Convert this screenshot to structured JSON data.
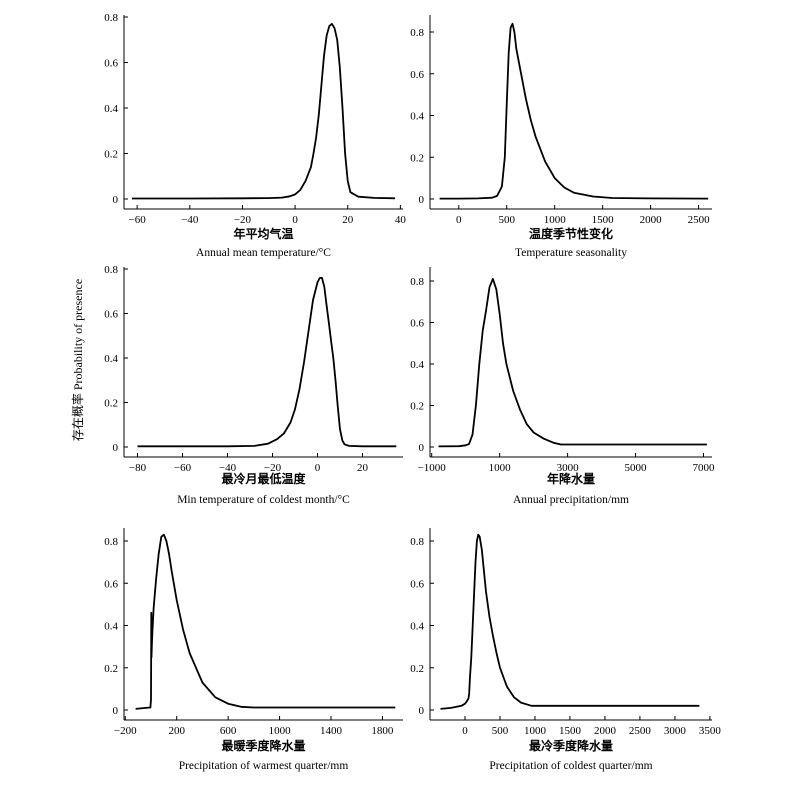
{
  "ylabel": "存在概率 Probability of presence",
  "chart_data": [
    {
      "type": "line",
      "xlabel_cn": "年平均气温",
      "xlabel_en": "Annual mean temperature/°C",
      "xlim": [
        -65,
        41
      ],
      "ylim": [
        0,
        0.8
      ],
      "xticks": [
        -60,
        -40,
        -20,
        0,
        20,
        40
      ],
      "xtick_labels": [
        "−60",
        "−40",
        "−20",
        "0",
        "20",
        "40"
      ],
      "yticks": [
        0,
        0.2,
        0.4,
        0.6,
        0.8
      ],
      "ytick_labels": [
        "0",
        "0.2",
        "0.4",
        "0.6",
        "0.8"
      ],
      "series": [
        {
          "x": [
            -62,
            -40,
            -20,
            -10,
            -5,
            -2,
            0,
            2,
            4,
            6,
            7,
            8,
            9,
            10,
            11,
            12,
            13,
            14,
            15,
            16,
            17,
            18,
            19,
            20,
            21,
            24,
            30,
            38
          ],
          "y": [
            0.002,
            0.002,
            0.003,
            0.004,
            0.006,
            0.012,
            0.02,
            0.04,
            0.08,
            0.14,
            0.2,
            0.27,
            0.37,
            0.5,
            0.63,
            0.72,
            0.76,
            0.77,
            0.75,
            0.7,
            0.58,
            0.4,
            0.2,
            0.08,
            0.03,
            0.01,
            0.005,
            0.003
          ]
        }
      ]
    },
    {
      "type": "line",
      "xlabel_cn": "温度季节性变化",
      "xlabel_en": "Temperature seasonality",
      "xlim": [
        -300,
        2640
      ],
      "ylim": [
        0,
        0.8
      ],
      "xticks": [
        0,
        500,
        1000,
        1500,
        2000,
        2500
      ],
      "xtick_labels": [
        "0",
        "500",
        "1000",
        "1500",
        "2000",
        "2500"
      ],
      "yticks": [
        0,
        0.2,
        0.4,
        0.6,
        0.8
      ],
      "ytick_labels": [
        "0",
        "0.2",
        "0.4",
        "0.6",
        "0.8"
      ],
      "series": [
        {
          "x": [
            -200,
            0,
            200,
            350,
            400,
            450,
            480,
            500,
            520,
            540,
            560,
            580,
            600,
            650,
            700,
            750,
            800,
            900,
            1000,
            1100,
            1200,
            1400,
            1600,
            2000,
            2600
          ],
          "y": [
            0.002,
            0.002,
            0.003,
            0.006,
            0.015,
            0.06,
            0.2,
            0.45,
            0.7,
            0.82,
            0.84,
            0.8,
            0.72,
            0.6,
            0.48,
            0.38,
            0.3,
            0.18,
            0.1,
            0.055,
            0.03,
            0.012,
            0.005,
            0.003,
            0.002
          ]
        }
      ]
    },
    {
      "type": "line",
      "xlabel_cn": "最冷月最低温度",
      "xlabel_en": "Min temperature of coldest month/°C",
      "xlim": [
        -86,
        38
      ],
      "ylim": [
        0,
        0.8
      ],
      "xticks": [
        -80,
        -60,
        -40,
        -20,
        0,
        20
      ],
      "xtick_labels": [
        "−80",
        "−60",
        "−40",
        "−20",
        "0",
        "20"
      ],
      "yticks": [
        0,
        0.2,
        0.4,
        0.6,
        0.8
      ],
      "ytick_labels": [
        "0",
        "0.2",
        "0.4",
        "0.6",
        "0.8"
      ],
      "series": [
        {
          "x": [
            -80,
            -40,
            -28,
            -22,
            -18,
            -15,
            -12,
            -10,
            -8,
            -6,
            -4,
            -2,
            0,
            1,
            2,
            3,
            4,
            5,
            6,
            7,
            8,
            9,
            10,
            11,
            12,
            14,
            20,
            35
          ],
          "y": [
            0.003,
            0.003,
            0.005,
            0.015,
            0.035,
            0.06,
            0.11,
            0.17,
            0.26,
            0.38,
            0.52,
            0.66,
            0.74,
            0.76,
            0.76,
            0.72,
            0.64,
            0.56,
            0.48,
            0.4,
            0.3,
            0.18,
            0.08,
            0.03,
            0.012,
            0.005,
            0.003,
            0.003
          ]
        }
      ]
    },
    {
      "type": "line",
      "xlabel_cn": "年降水量",
      "xlabel_en": "Annual precipitation/mm",
      "xlim": [
        -1050,
        7250
      ],
      "ylim": [
        0,
        0.8
      ],
      "xticks": [
        -1000,
        1000,
        3000,
        5000,
        7000
      ],
      "xtick_labels": [
        "−1000",
        "1000",
        "3000",
        "5000",
        "7000"
      ],
      "yticks": [
        0,
        0.2,
        0.4,
        0.6,
        0.8
      ],
      "ytick_labels": [
        "0",
        "0.2",
        "0.4",
        "0.6",
        "0.8"
      ],
      "series": [
        {
          "x": [
            -800,
            -200,
            0,
            100,
            200,
            300,
            400,
            500,
            600,
            700,
            800,
            900,
            1000,
            1100,
            1200,
            1400,
            1600,
            1800,
            2000,
            2300,
            2600,
            2800,
            3500,
            5000,
            7100
          ],
          "y": [
            0.003,
            0.004,
            0.008,
            0.015,
            0.06,
            0.2,
            0.4,
            0.56,
            0.66,
            0.77,
            0.81,
            0.76,
            0.64,
            0.5,
            0.4,
            0.27,
            0.18,
            0.11,
            0.07,
            0.04,
            0.02,
            0.012,
            0.012,
            0.012,
            0.012
          ]
        }
      ]
    },
    {
      "type": "line",
      "xlabel_cn": "最暖季度降水量",
      "xlabel_en": "Precipitation of warmest quarter/mm",
      "xlim": [
        -210,
        1960
      ],
      "ylim": [
        0,
        0.85
      ],
      "xticks": [
        -200,
        200,
        600,
        1000,
        1400,
        1800
      ],
      "xtick_labels": [
        "−200",
        "200",
        "600",
        "1000",
        "1400",
        "1800"
      ],
      "yticks": [
        0,
        0.2,
        0.4,
        0.6,
        0.8
      ],
      "ytick_labels": [
        "0",
        "0.2",
        "0.4",
        "0.6",
        "0.8"
      ],
      "series": [
        {
          "x": [
            -120,
            -40,
            -5,
            0,
            2,
            4,
            6,
            10,
            20,
            40,
            60,
            80,
            100,
            120,
            140,
            160,
            200,
            250,
            300,
            400,
            500,
            600,
            700,
            800,
            1000,
            1400,
            1900
          ],
          "y": [
            0.005,
            0.01,
            0.012,
            0.05,
            0.46,
            0.25,
            0.3,
            0.36,
            0.48,
            0.62,
            0.74,
            0.82,
            0.83,
            0.8,
            0.74,
            0.66,
            0.52,
            0.38,
            0.27,
            0.13,
            0.06,
            0.03,
            0.015,
            0.012,
            0.012,
            0.012,
            0.012
          ]
        }
      ]
    },
    {
      "type": "line",
      "xlabel_cn": "最冷季度降水量",
      "xlabel_en": "Precipitation of coldest quarter/mm",
      "xlim": [
        -500,
        3530
      ],
      "ylim": [
        0,
        0.85
      ],
      "xticks": [
        0,
        500,
        1000,
        1500,
        2000,
        2500,
        3000,
        3500
      ],
      "xtick_labels": [
        "0",
        "500",
        "1000",
        "1500",
        "2000",
        "2500",
        "3000",
        "3500"
      ],
      "yticks": [
        0,
        0.2,
        0.4,
        0.6,
        0.8
      ],
      "ytick_labels": [
        "0",
        "0.2",
        "0.4",
        "0.6",
        "0.8"
      ],
      "series": [
        {
          "x": [
            -350,
            -200,
            -50,
            0,
            25,
            50,
            60,
            70,
            90,
            110,
            130,
            150,
            170,
            190,
            210,
            240,
            270,
            300,
            350,
            400,
            450,
            500,
            600,
            700,
            800,
            950,
            1500,
            3350
          ],
          "y": [
            0.005,
            0.01,
            0.02,
            0.03,
            0.04,
            0.055,
            0.08,
            0.15,
            0.25,
            0.4,
            0.55,
            0.7,
            0.8,
            0.83,
            0.82,
            0.76,
            0.66,
            0.56,
            0.44,
            0.35,
            0.27,
            0.2,
            0.11,
            0.06,
            0.035,
            0.02,
            0.02,
            0.02
          ]
        }
      ]
    }
  ]
}
